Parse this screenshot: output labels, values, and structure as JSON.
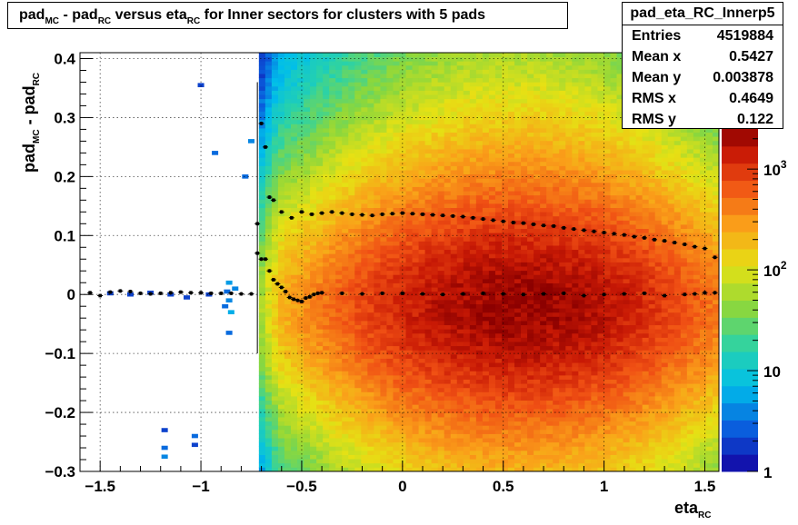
{
  "title": {
    "parts": [
      {
        "t": "pad",
        "sub": "MC"
      },
      {
        "t": " - pad",
        "sub": "RC"
      },
      {
        "t": " versus eta",
        "sub": "RC"
      },
      {
        "t": " for Inner sectors for clusters with 5 pads",
        "sub": ""
      }
    ]
  },
  "stats": {
    "name": "pad_eta_RC_Innerp5",
    "rows": [
      {
        "label": "Entries",
        "value": "4519884"
      },
      {
        "label": "Mean x",
        "value": "0.5427"
      },
      {
        "label": "Mean y",
        "value": "0.003878"
      },
      {
        "label": "RMS x",
        "value": "0.4649"
      },
      {
        "label": "RMS y",
        "value": "0.122"
      }
    ]
  },
  "chart_data": {
    "type": "heatmap",
    "title": "pad_MC - pad_RC versus eta_RC for Inner sectors for clusters with 5 pads",
    "xlabel": {
      "base": "eta",
      "sub": "RC"
    },
    "ylabel": {
      "base": "pad",
      "sub1": "MC",
      "mid": " - pad",
      "sub2": "RC"
    },
    "xlim": [
      -1.6,
      1.57
    ],
    "ylim": [
      -0.3,
      0.41
    ],
    "x_ticks": [
      {
        "v": -1.5,
        "label": "−1.5"
      },
      {
        "v": -1,
        "label": "−1"
      },
      {
        "v": -0.5,
        "label": "−0.5"
      },
      {
        "v": 0,
        "label": "0"
      },
      {
        "v": 0.5,
        "label": "0.5"
      },
      {
        "v": 1,
        "label": "1"
      },
      {
        "v": 1.5,
        "label": "1.5"
      }
    ],
    "y_ticks": [
      {
        "v": -0.3,
        "label": "−0.3"
      },
      {
        "v": -0.2,
        "label": "−0.2"
      },
      {
        "v": -0.1,
        "label": "−0.1"
      },
      {
        "v": 0,
        "label": "0"
      },
      {
        "v": 0.1,
        "label": "0.1"
      },
      {
        "v": 0.2,
        "label": "0.2"
      },
      {
        "v": 0.3,
        "label": "0.3"
      },
      {
        "v": 0.4,
        "label": "0.4"
      }
    ],
    "z_scale": "log",
    "zlim": [
      1,
      2500
    ],
    "z_ticks": [
      {
        "v": 1,
        "label": "1"
      },
      {
        "v": 10,
        "label": "10"
      },
      {
        "v": 100,
        "label": "10",
        "sup": "2"
      },
      {
        "v": 1000,
        "label": "10",
        "sup": "3"
      }
    ],
    "grid": true,
    "density": {
      "x_range": [
        -0.72,
        1.57
      ],
      "center": [
        0.58,
        -0.02
      ],
      "sigma_x": 0.55,
      "sigma_y": 0.11,
      "peak": 2200
    },
    "outliers": [
      {
        "x": -1.0,
        "y": 0.355,
        "z": 2
      },
      {
        "x": -0.93,
        "y": 0.24,
        "z": 3
      },
      {
        "x": -0.75,
        "y": 0.26,
        "z": 4
      },
      {
        "x": -0.78,
        "y": 0.2,
        "z": 3
      },
      {
        "x": -0.86,
        "y": 0.02,
        "z": 5
      },
      {
        "x": -0.86,
        "y": -0.01,
        "z": 4
      },
      {
        "x": -0.85,
        "y": -0.03,
        "z": 6
      },
      {
        "x": -0.88,
        "y": -0.02,
        "z": 3
      },
      {
        "x": -0.83,
        "y": 0.01,
        "z": 4
      },
      {
        "x": -0.87,
        "y": 0.005,
        "z": 3
      },
      {
        "x": -0.96,
        "y": 0.0,
        "z": 2
      },
      {
        "x": -1.07,
        "y": -0.005,
        "z": 2
      },
      {
        "x": -1.15,
        "y": 0.0,
        "z": 2
      },
      {
        "x": -1.25,
        "y": 0.003,
        "z": 2
      },
      {
        "x": -1.35,
        "y": 0.0,
        "z": 2
      },
      {
        "x": -1.45,
        "y": 0.002,
        "z": 2
      },
      {
        "x": -0.86,
        "y": -0.065,
        "z": 3
      },
      {
        "x": -1.18,
        "y": -0.23,
        "z": 2
      },
      {
        "x": -1.03,
        "y": -0.24,
        "z": 3
      },
      {
        "x": -1.03,
        "y": -0.255,
        "z": 2
      },
      {
        "x": -1.18,
        "y": -0.26,
        "z": 3
      },
      {
        "x": -1.18,
        "y": -0.275,
        "z": 4
      }
    ],
    "profile_rms": {
      "name": "rms",
      "x": [
        -0.72,
        -0.7,
        -0.68,
        -0.66,
        -0.64,
        -0.6,
        -0.55,
        -0.5,
        -0.45,
        -0.4,
        -0.35,
        -0.3,
        -0.25,
        -0.2,
        -0.15,
        -0.1,
        -0.05,
        0.0,
        0.05,
        0.1,
        0.15,
        0.2,
        0.25,
        0.3,
        0.35,
        0.4,
        0.45,
        0.5,
        0.55,
        0.6,
        0.65,
        0.7,
        0.75,
        0.8,
        0.85,
        0.9,
        0.95,
        1.0,
        1.05,
        1.1,
        1.15,
        1.2,
        1.25,
        1.3,
        1.35,
        1.4,
        1.45,
        1.5,
        1.55
      ],
      "y": [
        0.12,
        0.29,
        0.25,
        0.165,
        0.16,
        0.14,
        0.13,
        0.14,
        0.136,
        0.138,
        0.14,
        0.138,
        0.136,
        0.135,
        0.134,
        0.136,
        0.137,
        0.138,
        0.137,
        0.136,
        0.135,
        0.134,
        0.133,
        0.132,
        0.13,
        0.128,
        0.126,
        0.124,
        0.122,
        0.121,
        0.119,
        0.117,
        0.116,
        0.113,
        0.111,
        0.109,
        0.107,
        0.105,
        0.103,
        0.101,
        0.098,
        0.096,
        0.093,
        0.091,
        0.088,
        0.085,
        0.081,
        0.078,
        0.063
      ]
    },
    "profile_mean": {
      "name": "mean",
      "x": [
        -1.55,
        -1.5,
        -1.45,
        -1.4,
        -1.35,
        -1.3,
        -1.25,
        -1.2,
        -1.15,
        -1.1,
        -1.05,
        -1.0,
        -0.95,
        -0.9,
        -0.85,
        -0.8,
        -0.75,
        -0.72,
        -0.7,
        -0.68,
        -0.66,
        -0.64,
        -0.62,
        -0.6,
        -0.58,
        -0.56,
        -0.54,
        -0.52,
        -0.5,
        -0.48,
        -0.46,
        -0.44,
        -0.42,
        -0.4,
        -0.3,
        -0.2,
        -0.1,
        0.0,
        0.1,
        0.2,
        0.3,
        0.4,
        0.5,
        0.6,
        0.7,
        0.8,
        0.9,
        1.0,
        1.1,
        1.2,
        1.3,
        1.4,
        1.45,
        1.5,
        1.55
      ],
      "y": [
        0.003,
        -0.002,
        0.004,
        0.006,
        0.005,
        0.002,
        0.001,
        0.002,
        0.003,
        0.004,
        0.003,
        0.003,
        0.002,
        0.002,
        0.002,
        0.001,
        0.001,
        0.07,
        0.06,
        0.06,
        0.04,
        0.025,
        0.018,
        0.012,
        0.005,
        -0.005,
        -0.008,
        -0.01,
        -0.012,
        -0.006,
        -0.004,
        0.0,
        0.002,
        0.003,
        0.002,
        0.001,
        0.002,
        0.002,
        0.001,
        0.0,
        0.001,
        0.002,
        0.001,
        0.0,
        0.001,
        0.002,
        -0.002,
        0.0,
        0.001,
        0.002,
        -0.002,
        0.0,
        0.001,
        0.003,
        0.003
      ]
    }
  }
}
